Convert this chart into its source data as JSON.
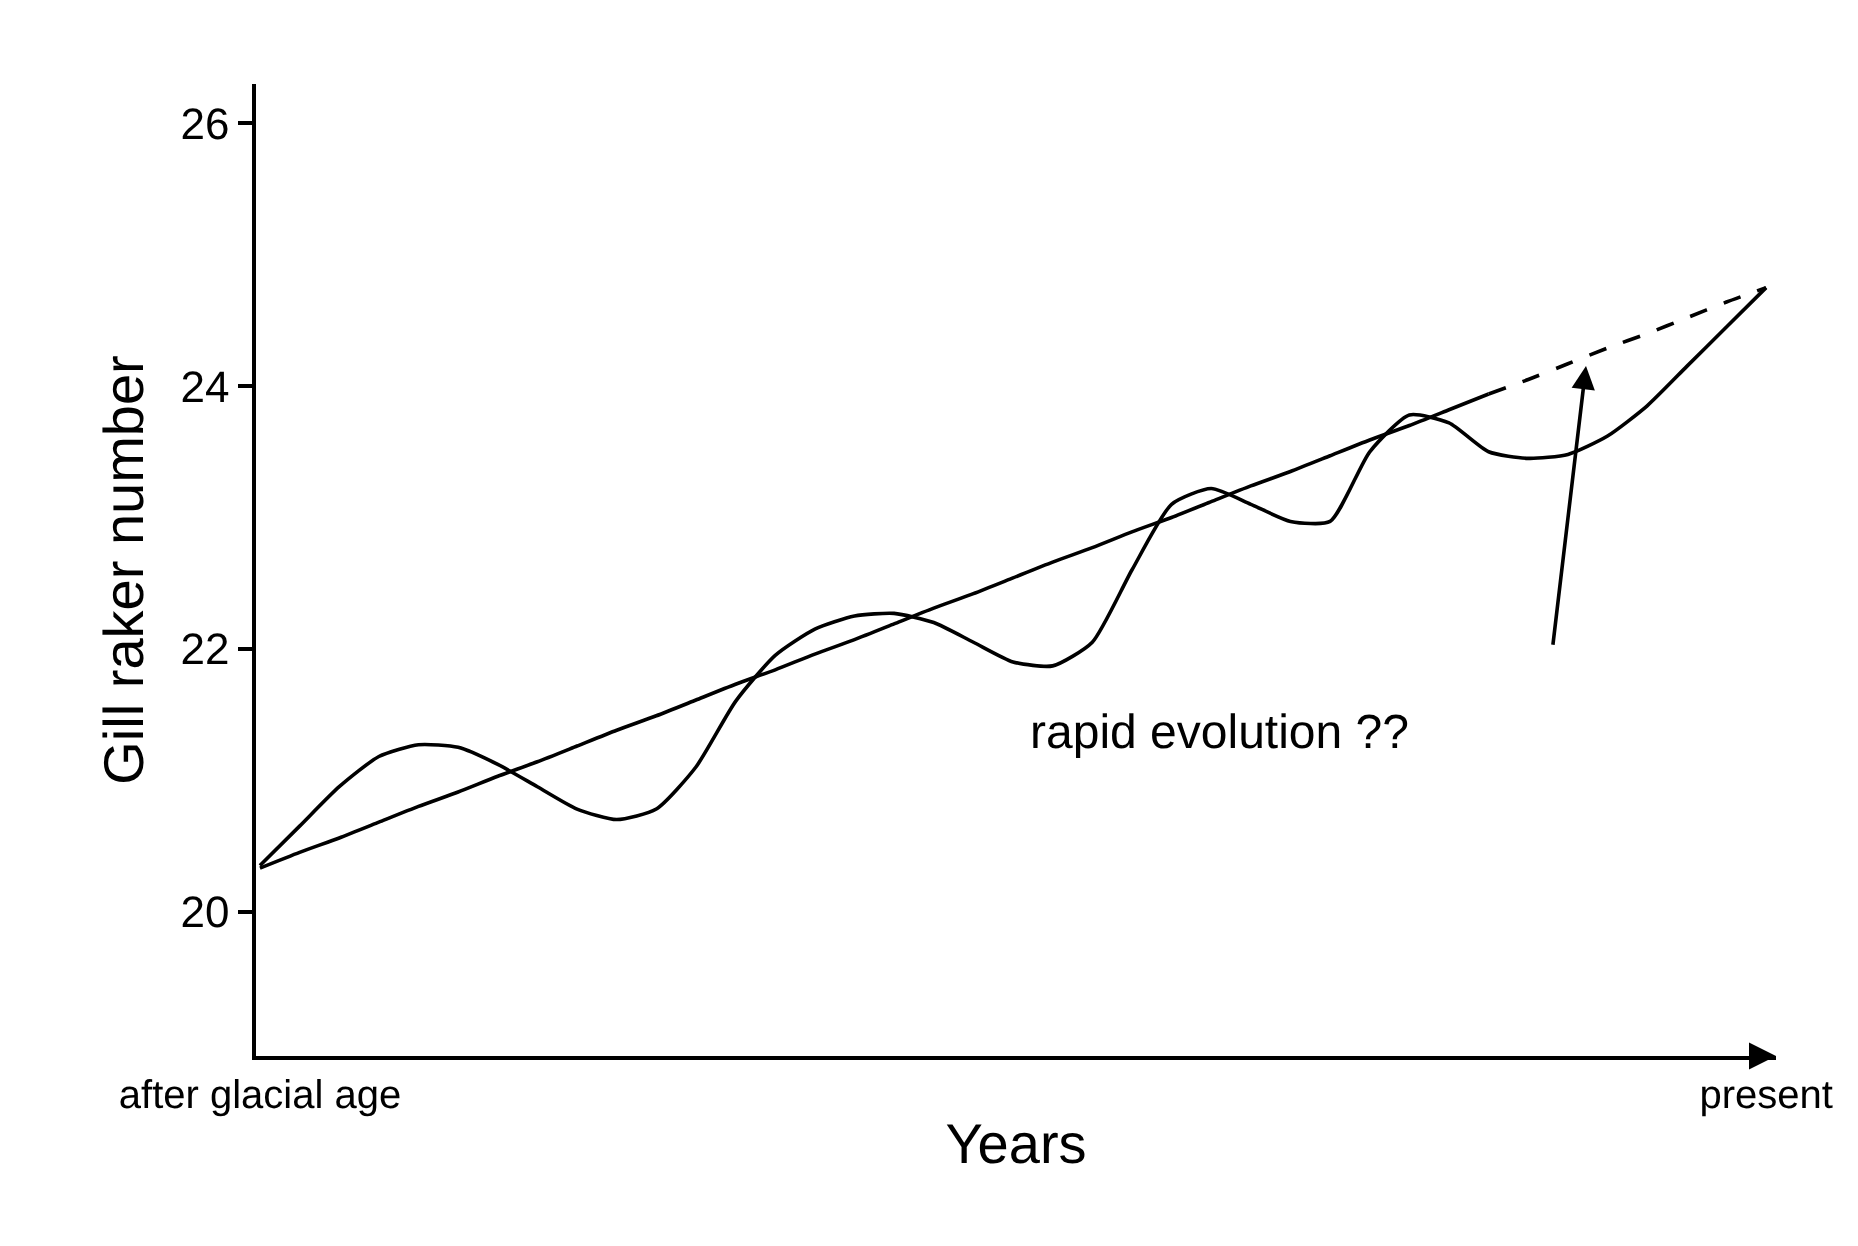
{
  "chart_data": {
    "type": "line",
    "xlabel": "Years",
    "ylabel": "Gill raker number",
    "categories": [
      "after glacial age",
      null,
      null,
      null,
      null,
      null,
      null,
      null,
      null,
      null,
      null,
      null,
      null,
      null,
      null,
      null,
      null,
      null,
      null,
      null,
      null,
      null,
      null,
      null,
      null,
      null,
      null,
      null,
      null,
      null,
      null,
      null,
      null,
      null,
      null,
      null,
      null,
      null,
      "present"
    ],
    "series": [
      {
        "color": "#000000",
        "line_style": "solid",
        "values": [
          20.35,
          20.65,
          20.95,
          21.18,
          21.27,
          21.25,
          21.12,
          20.95,
          20.78,
          20.7,
          20.78,
          21.1,
          21.6,
          21.95,
          22.15,
          22.25,
          22.27,
          22.2,
          22.05,
          21.9,
          21.87,
          22.05,
          22.6,
          23.1,
          23.22,
          23.1,
          22.97,
          22.97,
          23.5,
          23.78,
          23.72,
          23.5,
          23.45,
          23.48,
          23.62,
          23.85,
          24.15,
          24.45,
          24.75
        ]
      },
      {
        "color": "#000000",
        "line_style": "solid",
        "values": [
          20.33,
          20.45,
          20.56,
          20.68,
          20.8,
          20.91,
          21.03,
          21.14,
          21.26,
          21.38,
          21.49,
          21.61,
          21.73,
          21.84,
          21.96,
          22.07,
          22.19,
          22.31,
          22.42,
          22.54,
          22.66,
          22.77,
          22.89,
          23.0,
          23.12,
          23.24,
          23.35,
          23.47,
          23.59,
          23.7,
          23.82,
          23.94,
          null,
          null,
          null,
          null,
          null,
          null,
          null
        ]
      },
      {
        "color": "#000000",
        "line_style": "dashed",
        "values": [
          null,
          null,
          null,
          null,
          null,
          null,
          null,
          null,
          null,
          null,
          null,
          null,
          null,
          null,
          null,
          null,
          null,
          null,
          null,
          null,
          null,
          null,
          null,
          null,
          null,
          null,
          null,
          null,
          null,
          null,
          null,
          23.94,
          24.05,
          24.17,
          24.29,
          24.4,
          24.52,
          24.64,
          24.75
        ]
      }
    ],
    "annotations": [
      "rapid evolution ??"
    ],
    "ylim": [
      18.9,
      26.3
    ],
    "yticks": [
      20,
      22,
      24,
      26
    ],
    "marker": "none"
  }
}
